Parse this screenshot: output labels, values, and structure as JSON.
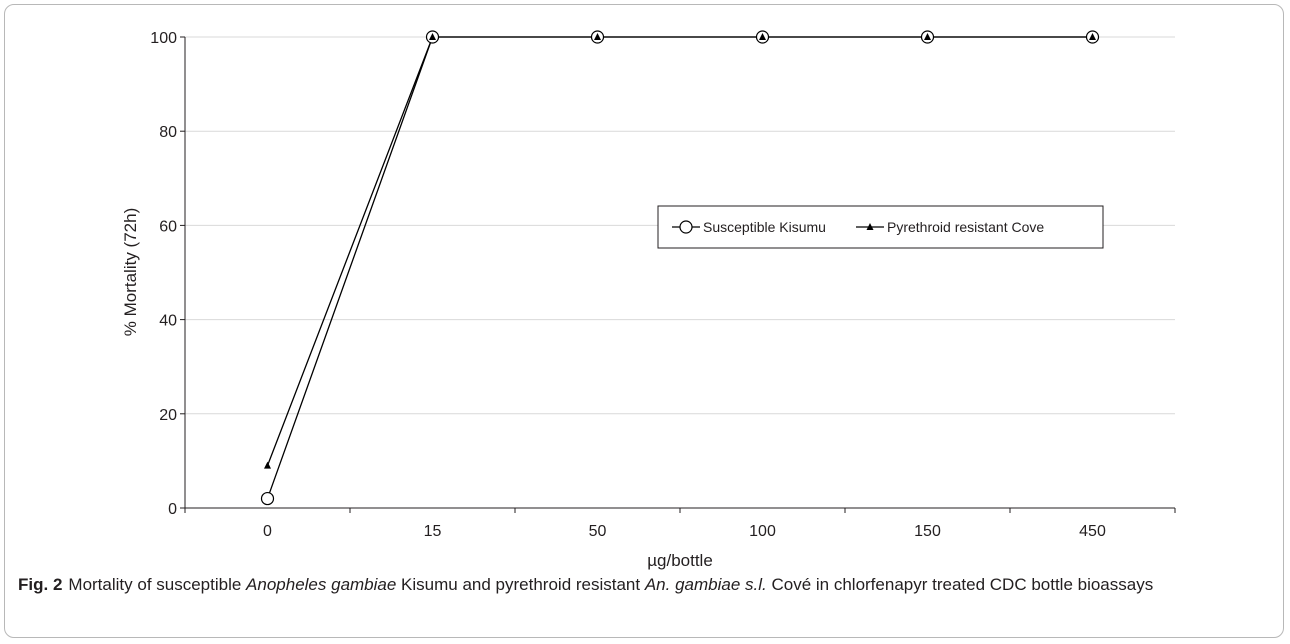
{
  "chart_data": {
    "type": "line",
    "categories": [
      "0",
      "15",
      "50",
      "100",
      "150",
      "450"
    ],
    "series": [
      {
        "name": "Susceptible Kisumu",
        "values": [
          2,
          100,
          100,
          100,
          100,
          100
        ],
        "marker": "circle"
      },
      {
        "name": "Pyrethroid resistant Cove",
        "values": [
          9,
          100,
          100,
          100,
          100,
          100
        ],
        "marker": "triangle"
      }
    ],
    "xlabel": "µg/bottle",
    "ylabel": "% Mortality (72h)",
    "ylim": [
      0,
      100
    ],
    "yticks": [
      0,
      20,
      40,
      60,
      80,
      100
    ],
    "grid": true,
    "legend_position": "center-right",
    "line_color": "#000000",
    "grid_color": "#d9d9d9"
  },
  "caption": {
    "label": "Fig. 2",
    "parts": [
      {
        "text": "Mortality of susceptible ",
        "italic": false
      },
      {
        "text": "Anopheles gambiae",
        "italic": true
      },
      {
        "text": " Kisumu and pyrethroid resistant ",
        "italic": false
      },
      {
        "text": "An. gambiae s.l.",
        "italic": true
      },
      {
        "text": " Cové in chlorfenapyr treated CDC bottle bioassays",
        "italic": false
      }
    ]
  }
}
